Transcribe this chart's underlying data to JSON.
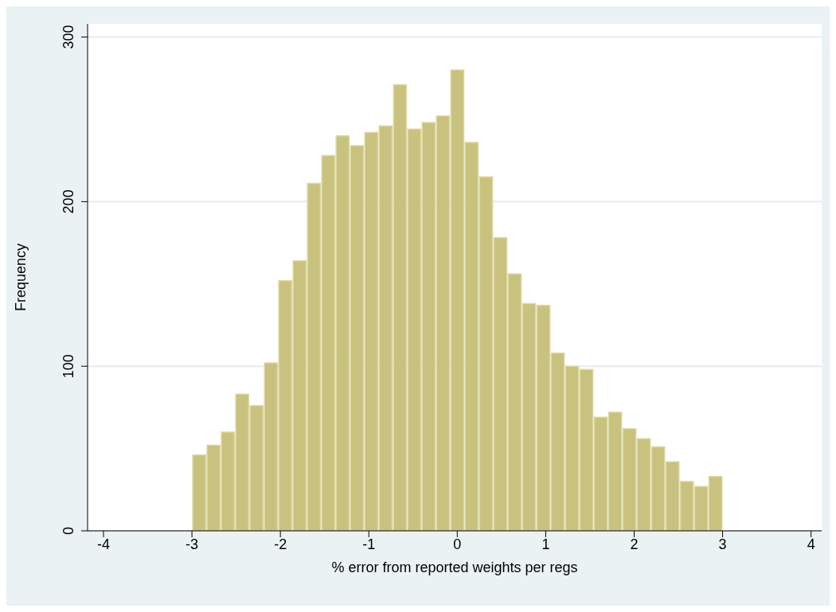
{
  "chart_data": {
    "type": "histogram",
    "xlabel": "% error from reported weights per regs",
    "ylabel": "Frequency",
    "bins": [
      -3,
      -2.8378,
      -2.6757,
      -2.5135,
      -2.3514,
      -2.1892,
      -2.027,
      -1.8649,
      -1.7027,
      -1.5405,
      -1.3784,
      -1.2162,
      -1.0541,
      -0.8919,
      -0.7297,
      -0.5676,
      -0.4054,
      -0.2432,
      -0.0811,
      0.0811,
      0.2432,
      0.4054,
      0.5676,
      0.7297,
      0.8919,
      1.0541,
      1.2162,
      1.3784,
      1.5405,
      1.7027,
      1.8649,
      2.027,
      2.1892,
      2.3514,
      2.5135,
      2.6757,
      2.8378,
      3
    ],
    "values": [
      46,
      52,
      60,
      83,
      76,
      102,
      152,
      164,
      211,
      228,
      240,
      234,
      242,
      246,
      271,
      244,
      248,
      252,
      280,
      236,
      215,
      178,
      156,
      138,
      137,
      108,
      100,
      98,
      69,
      72,
      62,
      56,
      51,
      42,
      30,
      27,
      33
    ],
    "color": "#c9c27e",
    "xlim": [
      -4.18,
      4.12
    ],
    "xticks": [
      -4,
      -3,
      -2,
      -1,
      0,
      1,
      2,
      3,
      4
    ],
    "ylim": [
      0,
      308
    ],
    "yticks": [
      0,
      100,
      200,
      300
    ],
    "grid": "y"
  }
}
